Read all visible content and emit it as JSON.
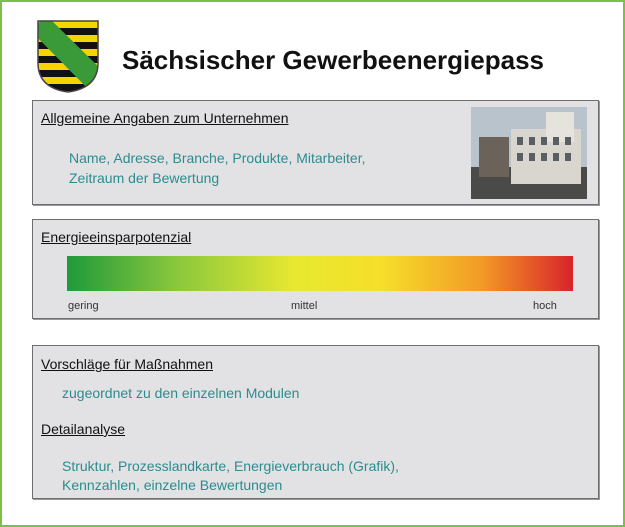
{
  "header": {
    "title": "Sächsischer Gewerbeenergiepass"
  },
  "sections": [
    {
      "heading": "Allgemeine Angaben zum Unternehmen",
      "lines": [
        "Name, Adresse, Branche, Produkte,  Mitarbeiter,",
        "Zeitraum der Bewertung"
      ]
    },
    {
      "heading": "Energieeinsparpotenzial",
      "scale_labels": [
        "gering",
        "mittel",
        "hoch"
      ]
    },
    {
      "heading": "Vorschläge für Maßnahmen",
      "lines": [
        "zugeordnet zu den einzelnen Modulen"
      ]
    },
    {
      "heading": "Detailanalyse",
      "lines": [
        "Struktur, Prozesslandkarte, Energieverbrauch (Grafik),",
        "Kennzahlen, einzelne Bewertungen"
      ]
    }
  ]
}
